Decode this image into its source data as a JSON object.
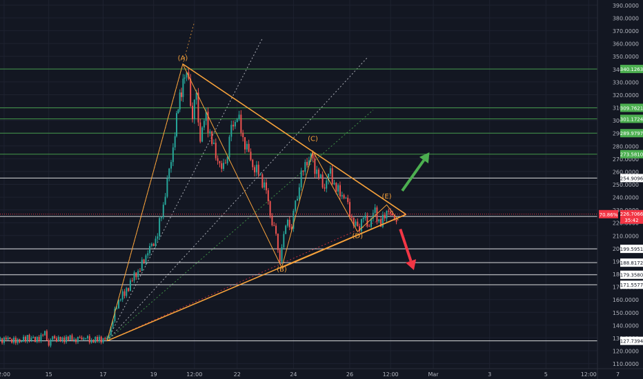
{
  "chart_data": {
    "type": "candlestick",
    "y_axis": {
      "ticks": [
        110,
        120,
        130,
        140,
        150,
        160,
        170,
        180,
        190,
        200,
        210,
        220,
        230,
        240,
        250,
        260,
        270,
        280,
        290,
        300,
        310,
        320,
        330,
        340,
        350,
        360,
        370,
        380,
        390
      ],
      "tick_format": "0000",
      "range": [
        106,
        394
      ]
    },
    "x_axis": {
      "ticks": [
        "2:00",
        "15",
        "17",
        "19",
        "12:00",
        "22",
        "24",
        "26",
        "12:00",
        "Mar",
        "3",
        "5",
        "12:00",
        "7"
      ],
      "tick_times": [
        0.3,
        2.6,
        5.4,
        8.0,
        10.1,
        12.3,
        15.2,
        18.1,
        20.2,
        22.4,
        25.3,
        28.2,
        30.4,
        31.9
      ]
    },
    "horizontal_levels": [
      {
        "label": "340.1263",
        "value": 340.1263,
        "color": "#4caf50"
      },
      {
        "label": "309.7621",
        "value": 309.7621,
        "color": "#4caf50"
      },
      {
        "label": "301.1724",
        "value": 301.1724,
        "color": "#4caf50"
      },
      {
        "label": "289.9797",
        "value": 289.9797,
        "color": "#4caf50"
      },
      {
        "label": "273.5810",
        "value": 273.581,
        "color": "#4caf50"
      },
      {
        "label": "254.9096",
        "value": 254.9096,
        "color": "#ffffff"
      },
      {
        "label": "224.8781",
        "value": 224.8781,
        "color": "#ffffff"
      },
      {
        "label": "199.5951",
        "value": 199.5951,
        "color": "#ffffff"
      },
      {
        "label": "188.8172",
        "value": 188.8172,
        "color": "#ffffff"
      },
      {
        "label": "179.3580",
        "value": 179.358,
        "color": "#ffffff"
      },
      {
        "label": "171.5577",
        "value": 171.5577,
        "color": "#ffffff"
      },
      {
        "label": "127.7394",
        "value": 127.7394,
        "color": "#ffffff"
      }
    ],
    "current_price": {
      "value": 226.7066,
      "label": "226.7066",
      "change_label": "70.86%",
      "countdown": "35:42",
      "color": "#f23645"
    },
    "wave_labels": [
      {
        "label": "(A)",
        "t": 9.5,
        "price": 347
      },
      {
        "label": "(B)",
        "t": 14.6,
        "price": 182
      },
      {
        "label": "(C)",
        "t": 16.2,
        "price": 284
      },
      {
        "label": "(D)",
        "t": 18.5,
        "price": 208
      },
      {
        "label": "(E)",
        "t": 20.0,
        "price": 239
      }
    ],
    "triangle_lines": [
      {
        "from": [
          9.5,
          344
        ],
        "to": [
          21.0,
          226.5
        ]
      },
      {
        "from": [
          5.6,
          127.7
        ],
        "to": [
          21.0,
          226.5
        ]
      },
      {
        "from": [
          14.6,
          185
        ],
        "to": [
          21.0,
          226.5
        ]
      }
    ],
    "wave_path": [
      [
        5.6,
        127.7
      ],
      [
        9.5,
        344
      ],
      [
        14.6,
        185
      ],
      [
        16.2,
        276
      ],
      [
        18.5,
        213
      ],
      [
        20.0,
        234
      ],
      [
        20.6,
        222
      ]
    ],
    "fan_lines": [
      {
        "from": [
          5.6,
          127.7
        ],
        "to": [
          10.1,
          377
        ],
        "color": "#f7a23b"
      },
      {
        "from": [
          5.6,
          127.7
        ],
        "to": [
          13.6,
          364
        ],
        "color": "#d1d4dc"
      },
      {
        "from": [
          5.6,
          127.7
        ],
        "to": [
          19.0,
          349
        ],
        "color": "#d1d4dc"
      },
      {
        "from": [
          5.6,
          127.7
        ],
        "to": [
          19.3,
          308
        ],
        "color": "#4caf50"
      },
      {
        "from": [
          5.6,
          127.7
        ],
        "to": [
          20.3,
          226.5
        ],
        "color": "#f23645"
      }
    ],
    "arrows": [
      {
        "direction": "up",
        "from": [
          20.8,
          245
        ],
        "to": [
          22.2,
          275
        ],
        "color": "#4caf50"
      },
      {
        "direction": "down",
        "from": [
          20.7,
          215
        ],
        "to": [
          21.4,
          183
        ],
        "color": "#f23645"
      }
    ],
    "price_path": [
      [
        0.0,
        128
      ],
      [
        0.5,
        129
      ],
      [
        1.0,
        127
      ],
      [
        1.5,
        130
      ],
      [
        2.0,
        129
      ],
      [
        2.4,
        133
      ],
      [
        2.6,
        126
      ],
      [
        2.8,
        130
      ],
      [
        3.2,
        128
      ],
      [
        3.6,
        130
      ],
      [
        4.0,
        129
      ],
      [
        4.4,
        131
      ],
      [
        4.8,
        128
      ],
      [
        5.2,
        129
      ],
      [
        5.6,
        128
      ],
      [
        5.9,
        145
      ],
      [
        6.2,
        160
      ],
      [
        6.6,
        167
      ],
      [
        7.0,
        178
      ],
      [
        7.3,
        184
      ],
      [
        7.6,
        196
      ],
      [
        7.9,
        200
      ],
      [
        8.2,
        212
      ],
      [
        8.5,
        235
      ],
      [
        8.8,
        258
      ],
      [
        9.1,
        292
      ],
      [
        9.35,
        318
      ],
      [
        9.6,
        336
      ],
      [
        9.8,
        328
      ],
      [
        10.0,
        306
      ],
      [
        10.2,
        316
      ],
      [
        10.4,
        288
      ],
      [
        10.7,
        302
      ],
      [
        11.0,
        282
      ],
      [
        11.3,
        272
      ],
      [
        11.5,
        260
      ],
      [
        11.8,
        276
      ],
      [
        12.0,
        292
      ],
      [
        12.3,
        306
      ],
      [
        12.6,
        286
      ],
      [
        12.9,
        272
      ],
      [
        13.2,
        264
      ],
      [
        13.5,
        256
      ],
      [
        13.8,
        243
      ],
      [
        14.1,
        222
      ],
      [
        14.3,
        208
      ],
      [
        14.5,
        192
      ],
      [
        14.7,
        210
      ],
      [
        14.9,
        222
      ],
      [
        15.1,
        217
      ],
      [
        15.3,
        234
      ],
      [
        15.5,
        252
      ],
      [
        15.8,
        266
      ],
      [
        16.0,
        272
      ],
      [
        16.2,
        266
      ],
      [
        16.5,
        256
      ],
      [
        16.8,
        250
      ],
      [
        17.1,
        258
      ],
      [
        17.4,
        246
      ],
      [
        17.7,
        244
      ],
      [
        18.0,
        232
      ],
      [
        18.3,
        220
      ],
      [
        18.5,
        214
      ],
      [
        18.8,
        224
      ],
      [
        19.1,
        220
      ],
      [
        19.4,
        228
      ],
      [
        19.7,
        218
      ],
      [
        20.0,
        232
      ],
      [
        20.2,
        226
      ],
      [
        20.4,
        222
      ],
      [
        20.6,
        226
      ]
    ]
  }
}
